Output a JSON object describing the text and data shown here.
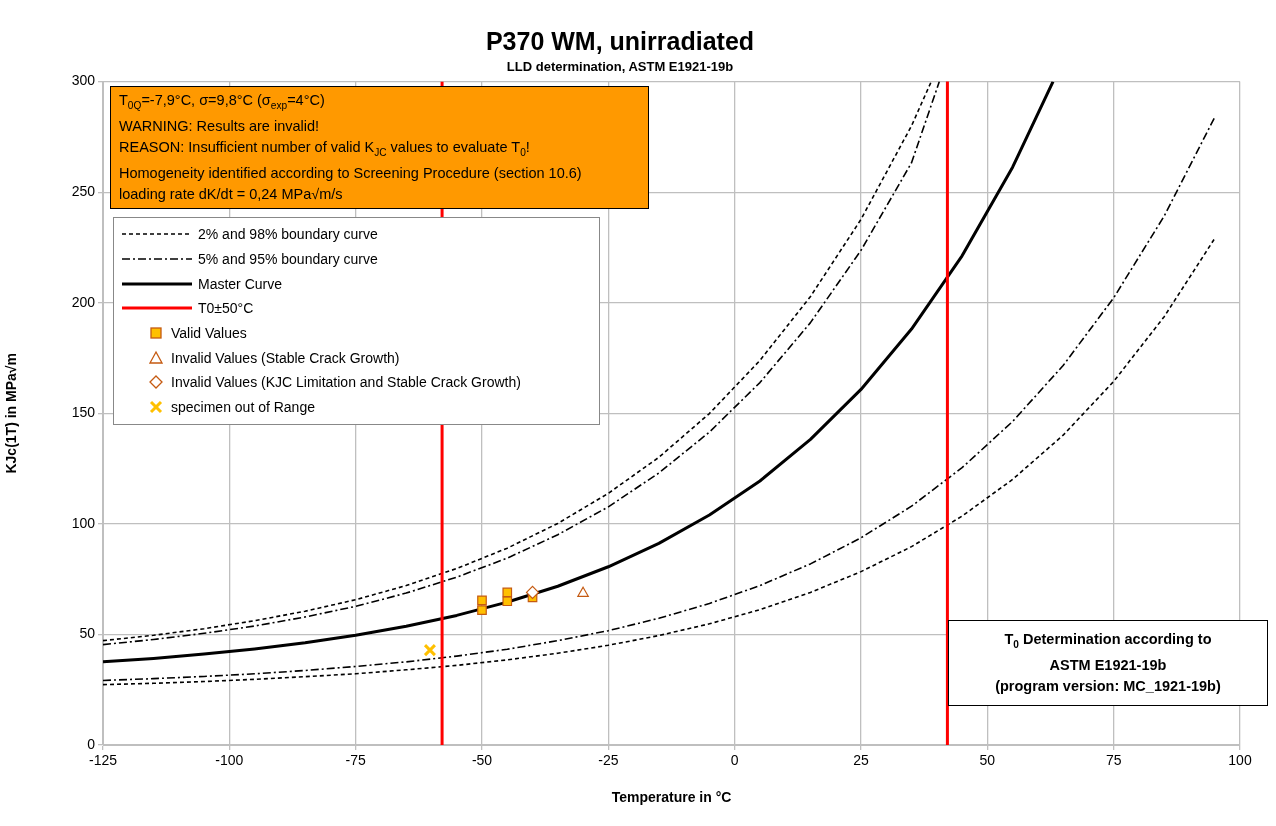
{
  "chart_data": {
    "type": "line",
    "title": "P370 WM, unirradiated",
    "subtitle": "LLD determination, ASTM E1921-19b",
    "xlabel": "Temperature in °C",
    "ylabel": "KJc(1T) in MPa√m",
    "xlim": [
      -125,
      100
    ],
    "xticks": [
      -125,
      -100,
      -75,
      -50,
      -25,
      0,
      25,
      50,
      75,
      100
    ],
    "ylim": [
      0,
      300
    ],
    "yticks": [
      0,
      50,
      100,
      150,
      200,
      250,
      300
    ],
    "grid": true,
    "legend": "top left",
    "series": [
      {
        "name": "2% and 98% boundary curve",
        "type": "line",
        "color": "#000000",
        "line_style": "dotted",
        "marker": "none",
        "x": [
          -125,
          -115,
          -105,
          -95,
          -85,
          -75,
          -65,
          -55,
          -45,
          -35,
          -25,
          -15,
          -5,
          5,
          15,
          25,
          35,
          45,
          55,
          65,
          75,
          85,
          95
        ],
        "values": [
          27.3,
          27.9,
          28.7,
          29.7,
          30.9,
          32.2,
          34.0,
          36.0,
          38.5,
          41.5,
          45.1,
          49.5,
          54.8,
          61.2,
          69.0,
          78.4,
          89.7,
          103.5,
          120.1,
          140.1,
          164.4,
          193.7,
          229.1
        ]
      },
      {
        "type": "line",
        "color": "#000000",
        "line_style": "dotted",
        "marker": "none",
        "x": [
          -125,
          -115,
          -105,
          -95,
          -85,
          -75,
          -65,
          -55,
          -45,
          -35,
          -25,
          -15,
          -5,
          5,
          15,
          25,
          35,
          38.9
        ],
        "values": [
          47.2,
          49.6,
          52.6,
          56.2,
          60.5,
          65.7,
          72.1,
          79.8,
          89.0,
          100.2,
          113.8,
          130.1,
          149.9,
          173.9,
          202.8,
          237.7,
          280.0,
          300
        ]
      },
      {
        "name": "5% and 95% boundary curve",
        "type": "line",
        "color": "#000000",
        "line_style": "dashed",
        "marker": "none",
        "x": [
          -125,
          -115,
          -105,
          -95,
          -85,
          -75,
          -65,
          -55,
          -45,
          -35,
          -25,
          -15,
          -5,
          5,
          15,
          25,
          35,
          45,
          55,
          65,
          75,
          85,
          95
        ],
        "values": [
          29.2,
          30.0,
          31.0,
          32.2,
          33.7,
          35.5,
          37.6,
          40.2,
          43.3,
          47.2,
          51.7,
          57.3,
          64.0,
          72.1,
          81.9,
          93.7,
          108.0,
          125.4,
          146.3,
          171.6,
          202.2,
          239.2,
          283.9
        ]
      },
      {
        "type": "line",
        "color": "#000000",
        "line_style": "dashed",
        "marker": "none",
        "x": [
          -125,
          -115,
          -105,
          -95,
          -85,
          -75,
          -65,
          -55,
          -45,
          -35,
          -25,
          -15,
          -5,
          5,
          15,
          25,
          35,
          40.5
        ],
        "values": [
          45.4,
          47.7,
          50.5,
          53.8,
          57.9,
          62.7,
          68.7,
          75.9,
          84.5,
          95.1,
          107.7,
          123.0,
          141.5,
          163.9,
          191.0,
          223.7,
          263.3,
          300
        ]
      },
      {
        "name": "Master Curve",
        "type": "line",
        "color": "#000000",
        "line_style": "solid",
        "marker": "none",
        "x": [
          -125,
          -115,
          -105,
          -95,
          -85,
          -75,
          -65,
          -55,
          -45,
          -35,
          -25,
          -15,
          -5,
          5,
          15,
          25,
          35,
          45,
          55,
          63
        ],
        "values": [
          37.6,
          39.1,
          41.1,
          43.4,
          46.2,
          49.6,
          53.7,
          58.6,
          64.6,
          71.8,
          80.6,
          91.2,
          104.0,
          119.4,
          138.2,
          160.8,
          188.1,
          221.2,
          261.3,
          300
        ]
      },
      {
        "name": "T0±50°C",
        "type": "line",
        "color": "#ff0000",
        "line_style": "solid",
        "marker": "none",
        "x": [
          -57.9,
          -57.9
        ],
        "values": [
          0,
          300
        ]
      },
      {
        "type": "line",
        "color": "#ff0000",
        "line_style": "solid",
        "marker": "none",
        "x": [
          42.1,
          42.1
        ],
        "values": [
          300,
          0
        ]
      },
      {
        "name": "Valid Values",
        "type": "scatter",
        "color": "#ffc000",
        "marker": "square",
        "x": [
          -50,
          -50,
          -45,
          -45,
          -40
        ],
        "values": [
          61,
          65.4,
          65,
          69,
          66.8
        ]
      },
      {
        "name": "Invalid Values (Stable Crack Growth)",
        "type": "scatter",
        "color": "#c55a11",
        "marker": "triangle",
        "x": [
          -30
        ],
        "values": [
          68.6
        ]
      },
      {
        "name": "Invalid Values (KJC Limitation and Stable Crack Growth)",
        "type": "scatter",
        "color": "#c55a11",
        "marker": "diamond",
        "x": [
          -40
        ],
        "values": [
          69
        ]
      },
      {
        "name": "specimen out of Range",
        "type": "scatter",
        "color": "#ffc000",
        "marker": "cross",
        "x": [
          -60.3
        ],
        "values": [
          42.9
        ]
      }
    ],
    "annotations": [
      "T$_{0Q}$=-7,9°C, σ=9,8°C (σ$_{exp}$=4°C)\nWARNING: Results are invalid!\nREASON: Insufficient number  of valid K$_{JC}$ values to evaluate T$_{0}$!\nHomogeneity identified according to Screening Procedure (section 10.6)\nloading rate dK/dt = 0,24 MPa√m/s",
      "T$_{0}$ Determination  according to\nASTM E1921-19b\n(program version: MC_1921-19b)"
    ]
  }
}
